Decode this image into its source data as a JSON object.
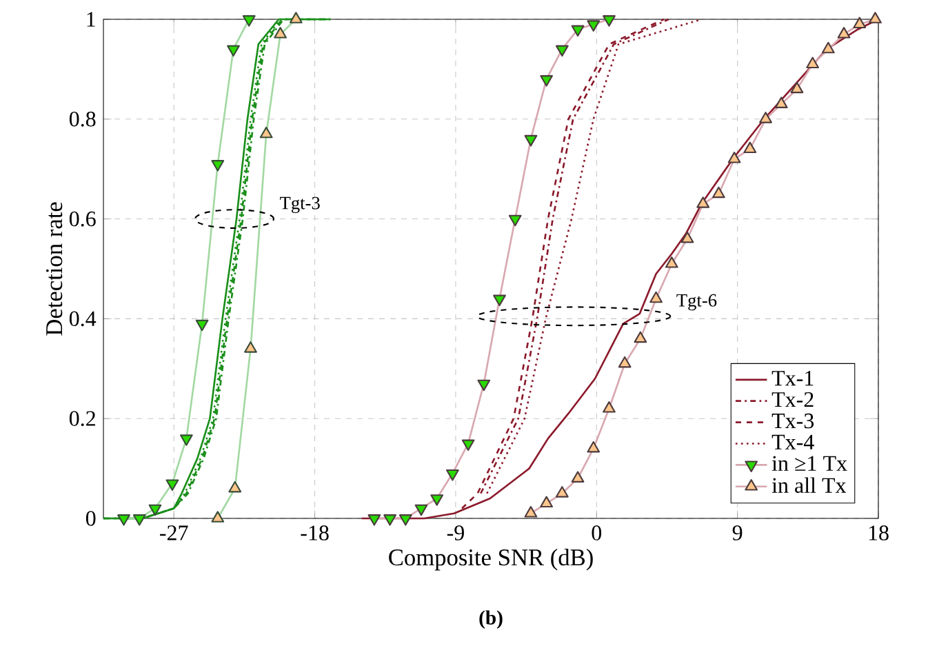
{
  "chart_data": {
    "type": "line",
    "xlabel": "Composite SNR (dB)",
    "ylabel": "Detection rate",
    "xlim": [
      -31.5,
      18
    ],
    "ylim": [
      0,
      1
    ],
    "xticks": [
      -27,
      -18,
      -9,
      0,
      9,
      18
    ],
    "yticks": [
      0,
      0.2,
      0.4,
      0.6,
      0.8,
      1
    ],
    "grid": true,
    "legend": "bottom right",
    "annotations": [
      "Tgt-3",
      "Tgt-6",
      "(b)"
    ],
    "series": [
      {
        "color": "#1a8f1a",
        "line_style": "solid",
        "x": [
          -31.5,
          -29,
          -27,
          -26.5,
          -25.5,
          -24.7,
          -23.9,
          -23.0,
          -22.3,
          -21.6,
          -20.3,
          -19,
          -17
        ],
        "values": [
          0,
          0,
          0.02,
          0.05,
          0.12,
          0.2,
          0.4,
          0.6,
          0.8,
          0.95,
          1,
          1,
          1
        ]
      },
      {
        "color": "#1a8f1a",
        "line_style": "dashdot",
        "x": [
          -31.5,
          -29,
          -27,
          -26.1,
          -25.1,
          -24.3,
          -23.5,
          -22.6,
          -21.9,
          -21.2,
          -20.0,
          -19,
          -17
        ],
        "values": [
          0,
          0,
          0.02,
          0.05,
          0.12,
          0.2,
          0.4,
          0.6,
          0.8,
          0.95,
          1,
          1,
          1
        ]
      },
      {
        "color": "#1a8f1a",
        "line_style": "dashed",
        "x": [
          -31.5,
          -29,
          -27,
          -26.2,
          -25.2,
          -24.4,
          -23.6,
          -22.7,
          -22.0,
          -21.3,
          -20.1,
          -19,
          -17
        ],
        "values": [
          0,
          0,
          0.02,
          0.05,
          0.12,
          0.2,
          0.4,
          0.6,
          0.8,
          0.95,
          1,
          1,
          1
        ]
      },
      {
        "color": "#1a8f1a",
        "line_style": "dotted",
        "x": [
          -31.5,
          -29,
          -27,
          -26.3,
          -25.3,
          -24.5,
          -23.7,
          -22.8,
          -22.1,
          -21.4,
          -20.2,
          -19,
          -17
        ],
        "values": [
          0,
          0,
          0.02,
          0.05,
          0.12,
          0.2,
          0.4,
          0.6,
          0.8,
          0.95,
          1,
          1,
          1
        ]
      },
      {
        "color": "#a3d9a3",
        "marker": "triangle_down",
        "x": [
          -30.2,
          -29.2,
          -28.2,
          -27.1,
          -26.2,
          -25.2,
          -24.2,
          -23.2,
          -22.2
        ],
        "values": [
          0,
          0,
          0.02,
          0.07,
          0.16,
          0.39,
          0.71,
          0.94,
          1
        ]
      },
      {
        "color": "#a3d9a3",
        "marker": "triangle",
        "x": [
          -24.2,
          -23.1,
          -22.1,
          -21.1,
          -20.2,
          -19.2
        ],
        "values": [
          0,
          0.06,
          0.34,
          0.77,
          0.97,
          1
        ]
      },
      {
        "name": "Tx-1",
        "color": "#8b1a2b",
        "line_style": "solid",
        "x": [
          -15,
          -11,
          -9.1,
          -6.8,
          -4.3,
          -3.1,
          -1.8,
          -0.1,
          1.7,
          2.75,
          3.8,
          4.8,
          5.7,
          6.7,
          8.7,
          10.7,
          12.7,
          14.7,
          16.7,
          18
        ],
        "values": [
          0,
          0,
          0.01,
          0.04,
          0.1,
          0.16,
          0.21,
          0.28,
          0.39,
          0.41,
          0.49,
          0.53,
          0.57,
          0.63,
          0.72,
          0.8,
          0.87,
          0.94,
          0.98,
          1
        ]
      },
      {
        "name": "Tx-2",
        "color": "#8b1a2b",
        "line_style": "dashdot",
        "x": [
          -7.4,
          -5.0,
          -3.8,
          -2.8,
          -1.5,
          1.1,
          4.6
        ],
        "values": [
          0.05,
          0.2,
          0.4,
          0.6,
          0.8,
          0.95,
          1
        ]
      },
      {
        "name": "Tx-3",
        "color": "#8b1a2b",
        "line_style": "dashed",
        "x": [
          -8.6,
          -7.6,
          -5.3,
          -4.1,
          -3.1,
          -1.8,
          0.8,
          4.3
        ],
        "values": [
          0.02,
          0.05,
          0.2,
          0.4,
          0.6,
          0.8,
          0.95,
          1
        ]
      },
      {
        "name": "Tx-4",
        "color": "#8b1a2b",
        "line_style": "dotted",
        "x": [
          -7,
          -4.6,
          -3.25,
          -1.6,
          -0.2,
          1.4,
          6.7
        ],
        "values": [
          0.05,
          0.2,
          0.4,
          0.6,
          0.8,
          0.95,
          1
        ]
      },
      {
        "name": "in ≥1 Tx",
        "color": "#d8a8b0",
        "marker": "triangle_down",
        "x": [
          -14.2,
          -13.2,
          -12.2,
          -11.2,
          -10.2,
          -9.2,
          -8.2,
          -7.2,
          -6.2,
          -5.2,
          -4.2,
          -3.2,
          -2.2,
          -1.2,
          -0.2,
          0.8
        ],
        "values": [
          0,
          0,
          0,
          0.02,
          0.04,
          0.09,
          0.15,
          0.27,
          0.44,
          0.6,
          0.76,
          0.88,
          0.94,
          0.98,
          0.99,
          1
        ]
      },
      {
        "name": "in all Tx",
        "color": "#d8a8b0",
        "marker": "triangle",
        "x": [
          -4.2,
          -3.2,
          -2.2,
          -1.2,
          -0.2,
          0.8,
          1.8,
          2.8,
          3.8,
          4.8,
          5.8,
          6.8,
          7.8,
          8.8,
          9.8,
          10.8,
          11.8,
          12.8,
          13.8,
          14.8,
          15.8,
          16.8,
          17.8
        ],
        "values": [
          0.01,
          0.03,
          0.05,
          0.08,
          0.14,
          0.22,
          0.31,
          0.36,
          0.44,
          0.51,
          0.56,
          0.63,
          0.65,
          0.72,
          0.74,
          0.8,
          0.83,
          0.86,
          0.91,
          0.94,
          0.97,
          0.99,
          1
        ]
      }
    ]
  }
}
